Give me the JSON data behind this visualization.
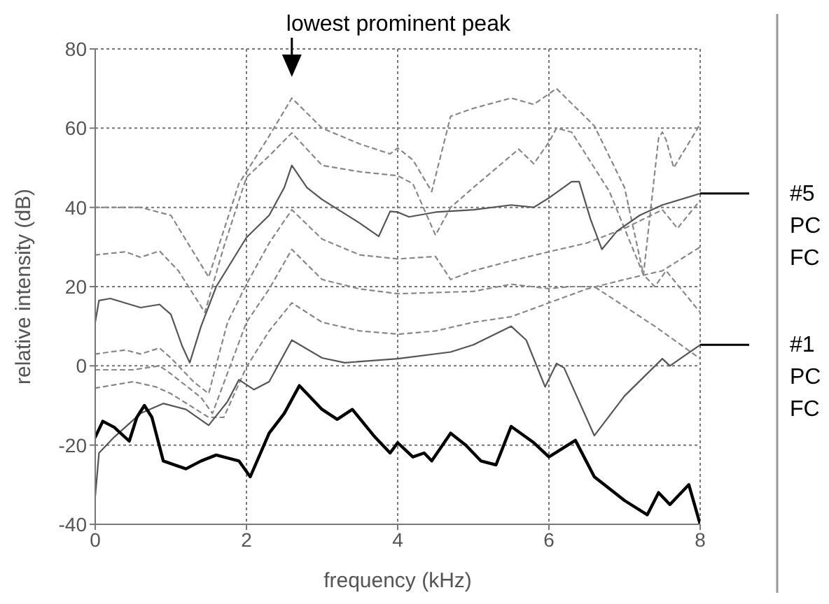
{
  "chart_data": {
    "type": "line",
    "xlabel": "frequency (kHz)",
    "ylabel": "relative intensity (dB)",
    "xlim": [
      0,
      8
    ],
    "ylim": [
      -40,
      80
    ],
    "xticks": [
      0,
      2,
      4,
      6,
      8
    ],
    "yticks": [
      -40,
      -20,
      0,
      20,
      40,
      60,
      80
    ],
    "grid": true,
    "marker": "none",
    "annotations": [
      "lowest prominent peak",
      "#5\nPC\nFC",
      "#1\nPC\nFC"
    ],
    "series": [
      {
        "color": "#888888",
        "line_style": "dashed",
        "x": [
          0,
          0.6,
          1.0,
          1.5,
          1.9,
          2.3,
          2.6,
          3.0,
          3.5,
          3.9,
          4.0,
          4.2,
          4.45,
          4.7,
          5.0,
          5.5,
          5.8,
          6.1,
          6.6,
          7.0,
          7.25,
          7.45,
          7.5,
          7.55,
          7.65,
          8.0
        ],
        "values": [
          40,
          40,
          38,
          22.4,
          46,
          58,
          67.6,
          60,
          56,
          53.5,
          55,
          52,
          44,
          63,
          65,
          67.6,
          66,
          70,
          60.6,
          45,
          23,
          57.5,
          59,
          57,
          50,
          61
        ]
      },
      {
        "color": "#888888",
        "line_style": "dashed",
        "x": [
          0,
          0.4,
          0.6,
          0.85,
          1.1,
          1.45,
          1.7,
          2.0,
          2.3,
          2.6,
          3.0,
          3.5,
          4.0,
          4.2,
          4.5,
          4.7,
          5.0,
          5.6,
          5.8,
          6.0,
          6.1,
          6.3,
          6.8,
          7.25,
          7.4,
          7.55,
          8.0
        ],
        "values": [
          28,
          28.8,
          27.4,
          29,
          24,
          13.5,
          30,
          47.6,
          53,
          58.8,
          50.6,
          49,
          48,
          46,
          33,
          40,
          45,
          54.7,
          51,
          56.5,
          60,
          59,
          44,
          23,
          20,
          24,
          13.5
        ]
      },
      {
        "color": "#888888",
        "line_style": "dashed",
        "x": [
          0,
          0.4,
          0.6,
          0.85,
          1.0,
          1.3,
          1.5,
          1.75,
          2.0,
          2.3,
          2.6,
          3.0,
          3.5,
          4.0,
          4.5,
          4.7,
          5.0,
          5.5,
          6.0,
          6.5,
          7.0,
          7.5,
          7.7,
          8.0
        ],
        "values": [
          3,
          4,
          3,
          4.5,
          2,
          -4,
          -7,
          11,
          20.6,
          31,
          39.4,
          32,
          28,
          27,
          27.6,
          21.8,
          24,
          26.5,
          28.8,
          31,
          34.7,
          39.4,
          34.7,
          41.8
        ]
      },
      {
        "color": "#888888",
        "line_style": "dashed",
        "x": [
          0,
          0.5,
          0.85,
          1.0,
          1.4,
          1.55,
          2.0,
          2.3,
          2.6,
          3.0,
          3.5,
          4.0,
          5.0,
          5.5,
          6.0,
          6.3,
          6.6,
          7.0,
          7.4,
          8.0
        ],
        "values": [
          -1,
          -1,
          0,
          -2,
          -8,
          -12,
          11,
          19.4,
          29.4,
          21.8,
          19.4,
          18.2,
          18.8,
          20.6,
          19.5,
          20,
          20,
          15,
          10,
          1.8
        ]
      },
      {
        "color": "#888888",
        "line_style": "dashed",
        "x": [
          0,
          0.5,
          0.8,
          1.0,
          1.5,
          1.7,
          2.0,
          2.3,
          2.6,
          3.0,
          3.5,
          4.0,
          4.5,
          5.0,
          5.5,
          6.0,
          6.5,
          7.0,
          7.5,
          8.0
        ],
        "values": [
          -5.6,
          -4,
          -5.3,
          -7,
          -13,
          -13,
          -0.3,
          8.8,
          15.9,
          11,
          8.8,
          8,
          8.8,
          11,
          12.4,
          15.9,
          19.4,
          21.8,
          24,
          30
        ]
      },
      {
        "color": "#555555",
        "line_style": "solid",
        "x": [
          0,
          0.05,
          0.2,
          0.6,
          0.85,
          1.0,
          1.15,
          1.25,
          1.4,
          1.6,
          2.0,
          2.3,
          2.5,
          2.6,
          2.8,
          3.0,
          3.5,
          3.75,
          3.9,
          4.0,
          4.15,
          4.5,
          5.0,
          5.5,
          5.8,
          6.0,
          6.3,
          6.4,
          6.55,
          6.7,
          6.9,
          7.2,
          7.5,
          8.0
        ],
        "values": [
          11,
          16.5,
          17,
          14.7,
          15.5,
          13,
          5,
          0.8,
          10,
          20,
          32.4,
          38,
          45,
          50.6,
          45,
          42,
          36,
          32.7,
          39,
          38.8,
          37.6,
          38.8,
          39.4,
          40.6,
          40,
          42.4,
          46.5,
          46.5,
          37,
          29.4,
          34,
          38,
          40.6,
          43.5
        ]
      },
      {
        "color": "#555555",
        "line_style": "solid",
        "x": [
          0,
          0.05,
          0.25,
          0.6,
          0.9,
          1.2,
          1.5,
          1.75,
          1.9,
          2.1,
          2.3,
          2.6,
          3.0,
          3.3,
          4.0,
          4.7,
          5.0,
          5.5,
          5.7,
          5.95,
          6.1,
          6.2,
          6.6,
          7.0,
          7.5,
          7.6,
          8.0
        ],
        "values": [
          -33,
          -22,
          -18,
          -12,
          -9.5,
          -11,
          -15,
          -9,
          -3.5,
          -6,
          -4,
          6.5,
          2,
          0.8,
          1.8,
          3.5,
          5.3,
          10,
          6.5,
          -5.3,
          0.6,
          -0.5,
          -17.6,
          -7.6,
          1.8,
          0,
          5.3
        ]
      },
      {
        "color": "#000000",
        "line_style": "solid",
        "x": [
          0,
          0.1,
          0.25,
          0.45,
          0.55,
          0.65,
          0.75,
          0.9,
          1.2,
          1.4,
          1.6,
          1.9,
          2.05,
          2.3,
          2.5,
          2.7,
          3.0,
          3.2,
          3.4,
          3.7,
          3.9,
          4.0,
          4.2,
          4.35,
          4.45,
          4.7,
          4.9,
          5.1,
          5.3,
          5.5,
          5.8,
          6.0,
          6.35,
          6.6,
          7.0,
          7.3,
          7.45,
          7.6,
          7.85,
          8.0
        ],
        "values": [
          -18,
          -14,
          -15.5,
          -19,
          -13,
          -10,
          -13,
          -24,
          -26,
          -24,
          -22.5,
          -24,
          -28,
          -17,
          -12,
          -5,
          -11,
          -13.5,
          -11,
          -18,
          -22,
          -19.4,
          -23,
          -22,
          -24,
          -17,
          -20,
          -24,
          -25,
          -15.3,
          -19.4,
          -23,
          -18.8,
          -28,
          -34,
          -37.6,
          -32,
          -35,
          -30,
          -40
        ]
      }
    ]
  }
}
